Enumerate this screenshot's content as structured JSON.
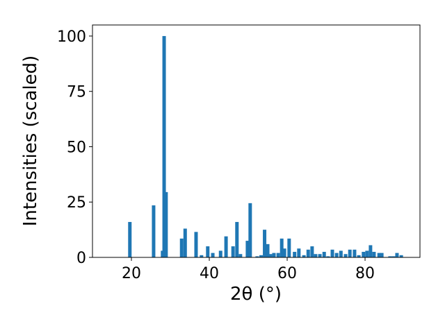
{
  "chart_data": {
    "type": "bar",
    "xlabel": "2θ (°)",
    "ylabel": "Intensities (scaled)",
    "color": "#1f77b4",
    "x": [
      19.6,
      25.7,
      28.0,
      28.4,
      28.9,
      32.9,
      33.8,
      36.6,
      38.0,
      39.6,
      40.9,
      42.9,
      44.3,
      46.1,
      47.1,
      48.0,
      49.8,
      50.5,
      52.3,
      53.3,
      54.2,
      55.0,
      55.7,
      56.6,
      57.7,
      58.6,
      59.3,
      60.5,
      61.9,
      63.0,
      64.3,
      65.4,
      66.4,
      67.3,
      68.4,
      69.5,
      70.5,
      71.6,
      72.7,
      73.8,
      75.0,
      76.1,
      77.3,
      78.4,
      79.6,
      80.5,
      81.4,
      82.3,
      83.6,
      84.3,
      86.4,
      87.3,
      88.2,
      89.3
    ],
    "values": [
      16,
      23.5,
      3,
      100,
      29.5,
      8.5,
      13,
      11.5,
      1,
      5,
      2,
      3,
      9.5,
      5,
      16,
      1.5,
      7.5,
      24.5,
      0.5,
      1,
      12.5,
      6,
      1.5,
      2,
      2,
      8.5,
      4,
      8.5,
      2.5,
      4,
      1,
      3.5,
      5,
      1.5,
      1.5,
      2.5,
      0.5,
      3.5,
      2,
      3,
      1.5,
      3.5,
      3.5,
      1,
      2.5,
      3,
      5.5,
      2.5,
      2,
      2,
      0.5,
      0.5,
      2,
      1
    ],
    "xlim": [
      10,
      94.1
    ],
    "xticks": [
      20,
      40,
      60,
      80
    ],
    "ylim": [
      0,
      105
    ],
    "yticks": [
      0,
      25,
      50,
      75,
      100
    ],
    "grid": false
  }
}
